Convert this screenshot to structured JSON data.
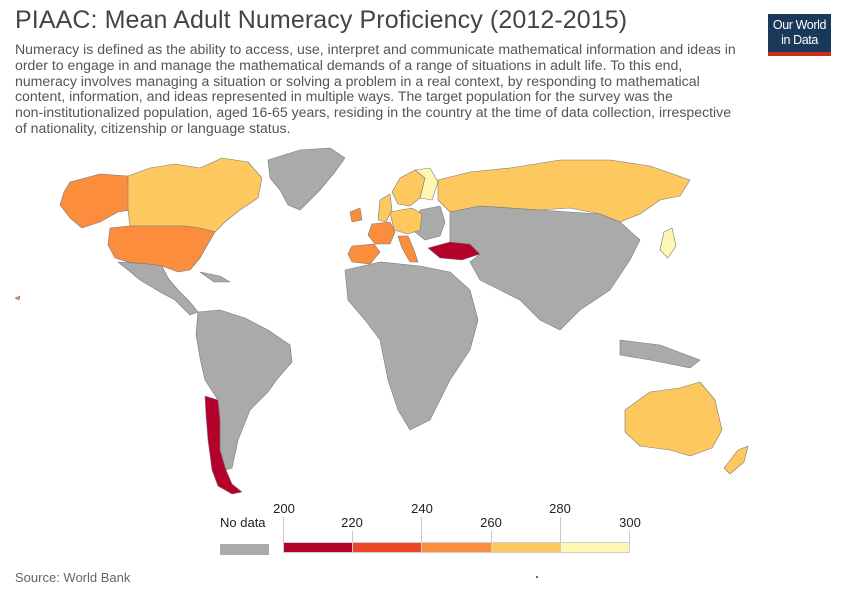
{
  "header": {
    "title": "PIAAC: Mean Adult Numeracy Proficiency (2012-2015)",
    "subtitle_lines": [
      "Numeracy is defined as the ability to access, use, interpret and communicate mathematical information and ideas in",
      "order to engage in and manage the mathematical demands of a range of situations in adult life. To this end,",
      "numeracy involves managing a situation or solving a problem in a real context, by responding to mathematical",
      "content, information, and ideas represented in multiple ways. The target population for the survey was the",
      "non-institutionalized population, aged 16-65 years, residing in the country at the time of data collection, irrespective",
      "of nationality, citizenship or language status."
    ]
  },
  "logo": {
    "line1": "Our World",
    "line2": "in Data"
  },
  "legend": {
    "no_data_label": "No data",
    "no_data_color": "#aaaaaa",
    "ticks": [
      "200",
      "220",
      "240",
      "260",
      "280",
      "300"
    ],
    "bins": [
      {
        "from": 200,
        "to": 220,
        "color": "#b5002c"
      },
      {
        "from": 220,
        "to": 240,
        "color": "#ee4526"
      },
      {
        "from": 240,
        "to": 260,
        "color": "#fb8d3d"
      },
      {
        "from": 260,
        "to": 280,
        "color": "#fdc95e"
      },
      {
        "from": 280,
        "to": 300,
        "color": "#fef7b4"
      }
    ]
  },
  "map_data": {
    "no_data_color": "#aaaaaa",
    "countries": [
      {
        "name": "United States",
        "bin": "240-260"
      },
      {
        "name": "Canada",
        "bin": "260-280"
      },
      {
        "name": "Chile",
        "bin": "200-220"
      },
      {
        "name": "Turkey",
        "bin": "200-220"
      },
      {
        "name": "Spain",
        "bin": "240-260"
      },
      {
        "name": "Italy",
        "bin": "240-260"
      },
      {
        "name": "France",
        "bin": "240-260"
      },
      {
        "name": "Ireland",
        "bin": "240-260"
      },
      {
        "name": "Israel",
        "bin": "240-260"
      },
      {
        "name": "Greece",
        "bin": "240-260"
      },
      {
        "name": "Russia",
        "bin": "260-280"
      },
      {
        "name": "Australia",
        "bin": "260-280"
      },
      {
        "name": "New Zealand",
        "bin": "260-280"
      },
      {
        "name": "United Kingdom",
        "bin": "260-280"
      },
      {
        "name": "Germany",
        "bin": "260-280"
      },
      {
        "name": "Poland",
        "bin": "260-280"
      },
      {
        "name": "Norway",
        "bin": "260-280"
      },
      {
        "name": "Sweden",
        "bin": "260-280"
      },
      {
        "name": "Denmark",
        "bin": "260-280"
      },
      {
        "name": "Netherlands",
        "bin": "260-280"
      },
      {
        "name": "Belgium",
        "bin": "260-280"
      },
      {
        "name": "Austria",
        "bin": "260-280"
      },
      {
        "name": "Czech Republic",
        "bin": "260-280"
      },
      {
        "name": "Slovakia",
        "bin": "260-280"
      },
      {
        "name": "Slovenia",
        "bin": "260-280"
      },
      {
        "name": "Estonia",
        "bin": "260-280"
      },
      {
        "name": "Lithuania",
        "bin": "260-280"
      },
      {
        "name": "Singapore",
        "bin": "240-260"
      },
      {
        "name": "Finland",
        "bin": "280-300"
      },
      {
        "name": "Japan",
        "bin": "280-300"
      },
      {
        "name": "South Korea",
        "bin": "260-280"
      }
    ]
  },
  "footer": {
    "source": "Source: World Bank"
  }
}
